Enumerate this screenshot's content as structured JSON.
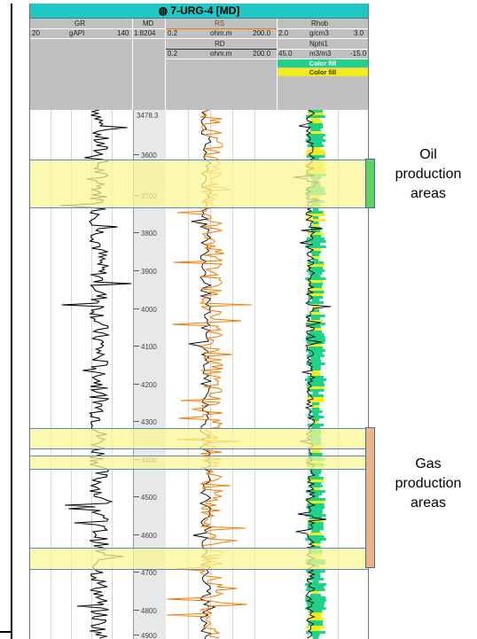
{
  "title": "7-URG-4 [MD]",
  "header": {
    "gr": {
      "name": "GR",
      "min": "20",
      "unit": "gAPI",
      "max": "140"
    },
    "md": {
      "name": "MD",
      "scale": "1:8204"
    },
    "rs": {
      "name": "RS",
      "min": "0.2",
      "unit": "ohm.m",
      "max": "200.0"
    },
    "rd": {
      "name": "RD",
      "min": "0.2",
      "unit": "ohm.m",
      "max": "200.0"
    },
    "rhob": {
      "name": "Rhob",
      "min": "2.0",
      "unit": "g/cm3",
      "max": "3.0"
    },
    "nphi": {
      "name": "Nphi1",
      "min": "45.0",
      "unit": "m3/m3",
      "max": "-15.0"
    },
    "fill1": {
      "label": "Color fill",
      "color": "#1fd28a"
    },
    "fill2": {
      "label": "Color fill",
      "color": "#f2ec1a"
    }
  },
  "depth": {
    "top_label": "3478.3",
    "ticks": [
      "3600",
      "3700",
      "3800",
      "3900",
      "4000",
      "4100",
      "4200",
      "4300",
      "4400",
      "4500",
      "4600",
      "4700",
      "4800",
      "4900"
    ]
  },
  "annotations": {
    "oil": {
      "line1": "Oil",
      "line2": "production",
      "line3": "areas",
      "color": "#5fd35a"
    },
    "gas": {
      "line1": "Gas",
      "line2": "production",
      "line3": "areas",
      "color": "#f0b483"
    }
  },
  "colors": {
    "title_bar": "#21c7c4",
    "gr_curve": "#000000",
    "rs_curve": "#f47a00",
    "rd_curve": "#000000",
    "zone_fill": "#faf596",
    "density_fill": "#1fd28a",
    "neutron_fill": "#f2ec1a"
  }
}
